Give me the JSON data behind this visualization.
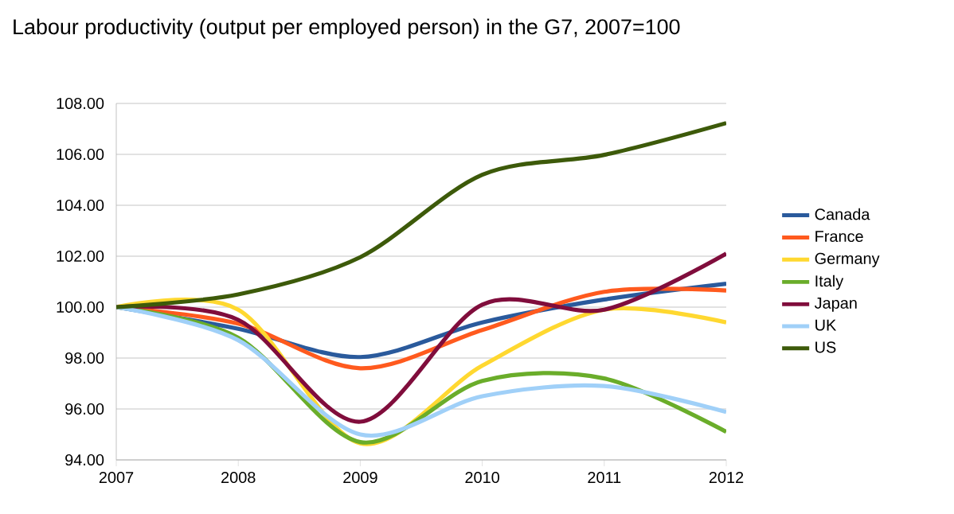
{
  "chart_data": {
    "type": "line",
    "title": "Labour productivity (output per employed person) in the G7, 2007=100",
    "x": [
      2007,
      2008,
      2009,
      2010,
      2011,
      2012
    ],
    "xlim": [
      2007,
      2012
    ],
    "xticks": [
      2007,
      2008,
      2009,
      2010,
      2011,
      2012
    ],
    "ylim": [
      94,
      108
    ],
    "yticks": [
      {
        "value": 94,
        "label": "94.00"
      },
      {
        "value": 96,
        "label": "96.00"
      },
      {
        "value": 98,
        "label": "98.00"
      },
      {
        "value": 100,
        "label": "100.00"
      },
      {
        "value": 102,
        "label": "102.00"
      },
      {
        "value": 104,
        "label": "104.00"
      },
      {
        "value": 106,
        "label": "106.00"
      },
      {
        "value": 108,
        "label": "108.00"
      }
    ],
    "grid": "y",
    "legend": "right",
    "marker": "none",
    "line_style": "solid",
    "series": [
      {
        "name": "Canada",
        "color": "#2a5a9c",
        "values": [
          100,
          99.15,
          98.04,
          99.4,
          100.3,
          100.92
        ]
      },
      {
        "name": "France",
        "color": "#ff5a1e",
        "values": [
          100,
          99.35,
          97.6,
          99.1,
          100.6,
          100.65
        ]
      },
      {
        "name": "Germany",
        "color": "#ffd830",
        "values": [
          100,
          99.9,
          94.65,
          97.7,
          99.9,
          99.4
        ]
      },
      {
        "name": "Italy",
        "color": "#6aad2a",
        "values": [
          100,
          98.8,
          94.7,
          97.1,
          97.2,
          95.1
        ]
      },
      {
        "name": "Japan",
        "color": "#800d3c",
        "values": [
          100,
          99.5,
          95.5,
          100.1,
          99.9,
          102.1
        ]
      },
      {
        "name": "UK",
        "color": "#a0d0f8",
        "values": [
          100,
          98.7,
          95.0,
          96.5,
          96.9,
          95.88
        ]
      },
      {
        "name": "US",
        "color": "#3d5a0a",
        "values": [
          100,
          100.5,
          101.96,
          105.2,
          105.98,
          107.23
        ]
      }
    ]
  }
}
